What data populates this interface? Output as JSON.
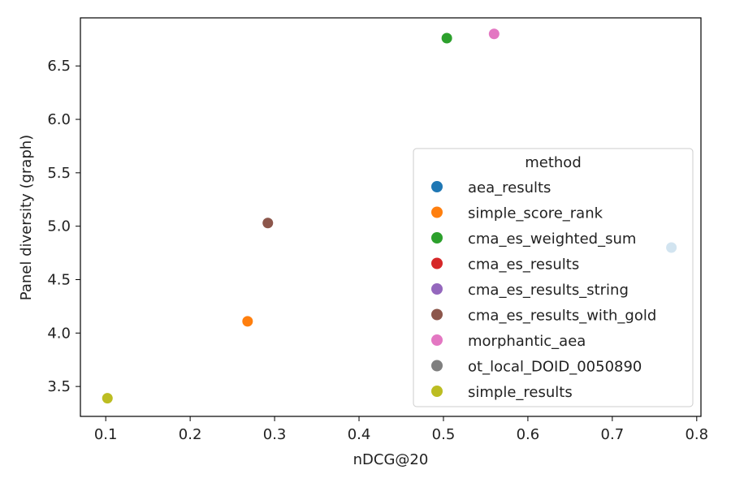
{
  "chart_data": {
    "type": "scatter",
    "xlabel": "nDCG@20",
    "ylabel": "Panel diversity (graph)",
    "xlim": [
      0.07,
      0.805
    ],
    "ylim": [
      3.22,
      6.95
    ],
    "x_ticks": [
      "0.1",
      "0.2",
      "0.3",
      "0.4",
      "0.5",
      "0.6",
      "0.7",
      "0.8"
    ],
    "y_ticks": [
      "3.5",
      "4.0",
      "4.5",
      "5.0",
      "5.5",
      "6.0",
      "6.5"
    ],
    "grid": false,
    "legend": {
      "title": "method",
      "placement": "lower-right",
      "entries": [
        {
          "name": "aea_results",
          "color": "#1f77b4"
        },
        {
          "name": "simple_score_rank",
          "color": "#ff7f0e"
        },
        {
          "name": "cma_es_weighted_sum",
          "color": "#2ca02c"
        },
        {
          "name": "cma_es_results",
          "color": "#d62728"
        },
        {
          "name": "cma_es_results_string",
          "color": "#9467bd"
        },
        {
          "name": "cma_es_results_with_gold",
          "color": "#8c564b"
        },
        {
          "name": "morphantic_aea",
          "color": "#e377c2"
        },
        {
          "name": "ot_local_DOID_0050890",
          "color": "#7f7f7f"
        },
        {
          "name": "simple_results",
          "color": "#bcbd22"
        }
      ]
    },
    "points": [
      {
        "method": "simple_results",
        "x": 0.102,
        "y": 3.39
      },
      {
        "method": "simple_score_rank",
        "x": 0.268,
        "y": 4.11
      },
      {
        "method": "cma_es_results_with_gold",
        "x": 0.292,
        "y": 5.03
      },
      {
        "method": "cma_es_weighted_sum",
        "x": 0.504,
        "y": 6.76
      },
      {
        "method": "morphantic_aea",
        "x": 0.56,
        "y": 6.8
      },
      {
        "method": "aea_results",
        "x": 0.77,
        "y": 4.8
      }
    ]
  }
}
